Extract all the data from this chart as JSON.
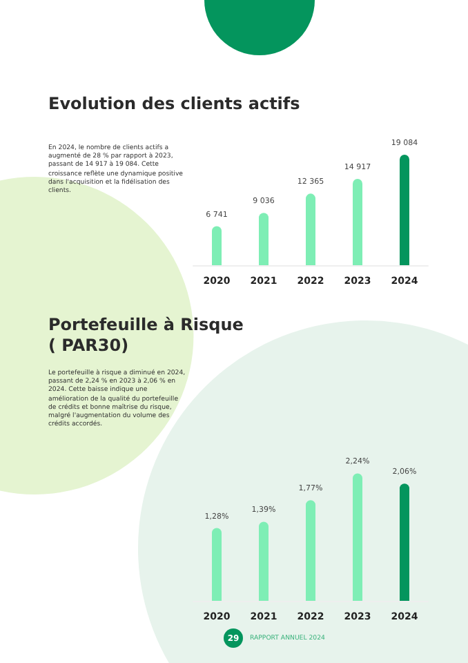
{
  "chart_data": [
    {
      "type": "bar",
      "title": "Evolution des clients actifs",
      "subtitle": "En 2024, le nombre de clients actifs a augmenté de 28 % par rapport à 2023, passant de 14 917 à 19 084. Cette croissance reflète une dynamique positive dans l'acquisition et la fidélisation des clients.",
      "categories": [
        "2020",
        "2021",
        "2022",
        "2023",
        "2024"
      ],
      "values": [
        6741,
        9036,
        12365,
        14917,
        19084
      ],
      "value_labels": [
        "6 741",
        "9 036",
        "12 365",
        "14 917",
        "19 084"
      ],
      "colors": [
        "#7eeeb5",
        "#7eeeb5",
        "#7eeeb5",
        "#7eeeb5",
        "#04955d"
      ]
    },
    {
      "type": "bar",
      "title": "Portefeuille à Risque ( PAR30)",
      "subtitle": "Le portefeuille à risque a diminué en 2024, passant de 2,24 % en 2023 à 2,06 % en 2024. Cette baisse indique une amélioration de la qualité du portefeuille de crédits et bonne maîtrise du risque, malgré l'augmentation du volume des crédits accordés.",
      "categories": [
        "2020",
        "2021",
        "2022",
        "2023",
        "2024"
      ],
      "values": [
        1.28,
        1.39,
        1.77,
        2.24,
        2.06
      ],
      "value_labels": [
        "1,28%",
        "1,39%",
        "1,77%",
        "2,24%",
        "2,06%"
      ],
      "colors": [
        "#7eeeb5",
        "#7eeeb5",
        "#7eeeb5",
        "#7eeeb5",
        "#04955d"
      ],
      "annotations": [
        "29",
        "RAPPORT ANNUEL 2024"
      ]
    }
  ]
}
